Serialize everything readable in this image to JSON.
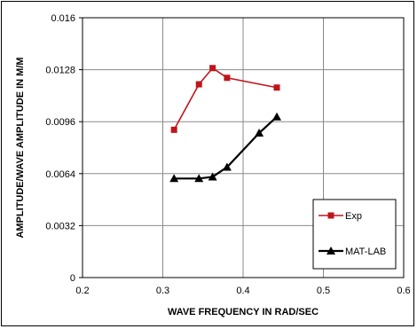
{
  "chart_data": {
    "type": "line",
    "title": "",
    "xlabel": "WAVE FREQUENCY IN RAD/SEC",
    "ylabel": "AMPLITUDE/WAVE AMPLITUDE IN M/M",
    "xlim": [
      0.2,
      0.6
    ],
    "ylim": [
      0,
      0.016
    ],
    "x_ticks": [
      "0.2",
      "0.3",
      "0.4",
      "0.5",
      "0.6"
    ],
    "y_ticks": [
      "0",
      "0.0032",
      "0.0064",
      "0.0096",
      "0.0128",
      "0.016"
    ],
    "grid": true,
    "legend_position": "bottom-right",
    "series": [
      {
        "name": "Exp",
        "color": "#c0141c",
        "marker": "square",
        "x": [
          0.314,
          0.345,
          0.362,
          0.38,
          0.442
        ],
        "y": [
          0.0091,
          0.0119,
          0.0129,
          0.0123,
          0.0117
        ]
      },
      {
        "name": "MAT-LAB",
        "color": "#000000",
        "marker": "triangle",
        "x": [
          0.314,
          0.345,
          0.362,
          0.38,
          0.42,
          0.442
        ],
        "y": [
          0.0061,
          0.0061,
          0.0062,
          0.0068,
          0.0089,
          0.0099
        ]
      }
    ]
  }
}
